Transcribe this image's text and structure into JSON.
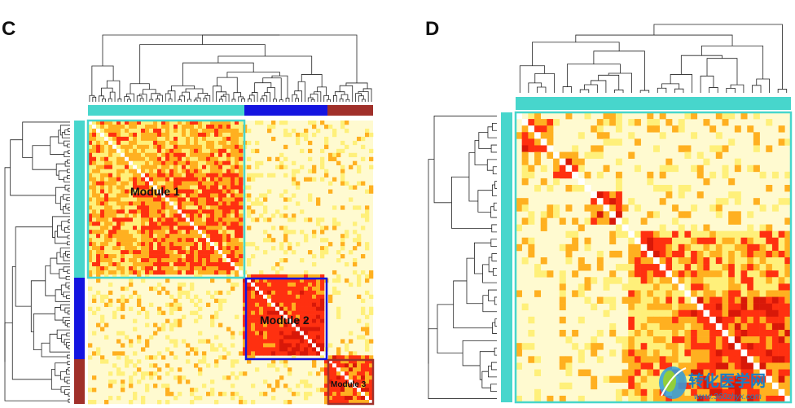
{
  "panels": {
    "c": {
      "letter": "C",
      "modules": [
        {
          "label": "Module 1",
          "color": "#47d6cc"
        },
        {
          "label": "Module 2",
          "color": "#1414e0"
        },
        {
          "label": "Module 3",
          "color": "#a0302a"
        }
      ]
    },
    "d": {
      "letter": "D",
      "module_color": "#47d6cc"
    }
  },
  "heatmap_palette": {
    "background": "#fffad0",
    "low": "#fff07a",
    "mid": "#ffb020",
    "high": "#ff3010",
    "max": "#d81808",
    "diagonal": "#ffffff"
  },
  "watermark": {
    "name": "转化医学网",
    "url": "www.360zhyx.com"
  }
}
